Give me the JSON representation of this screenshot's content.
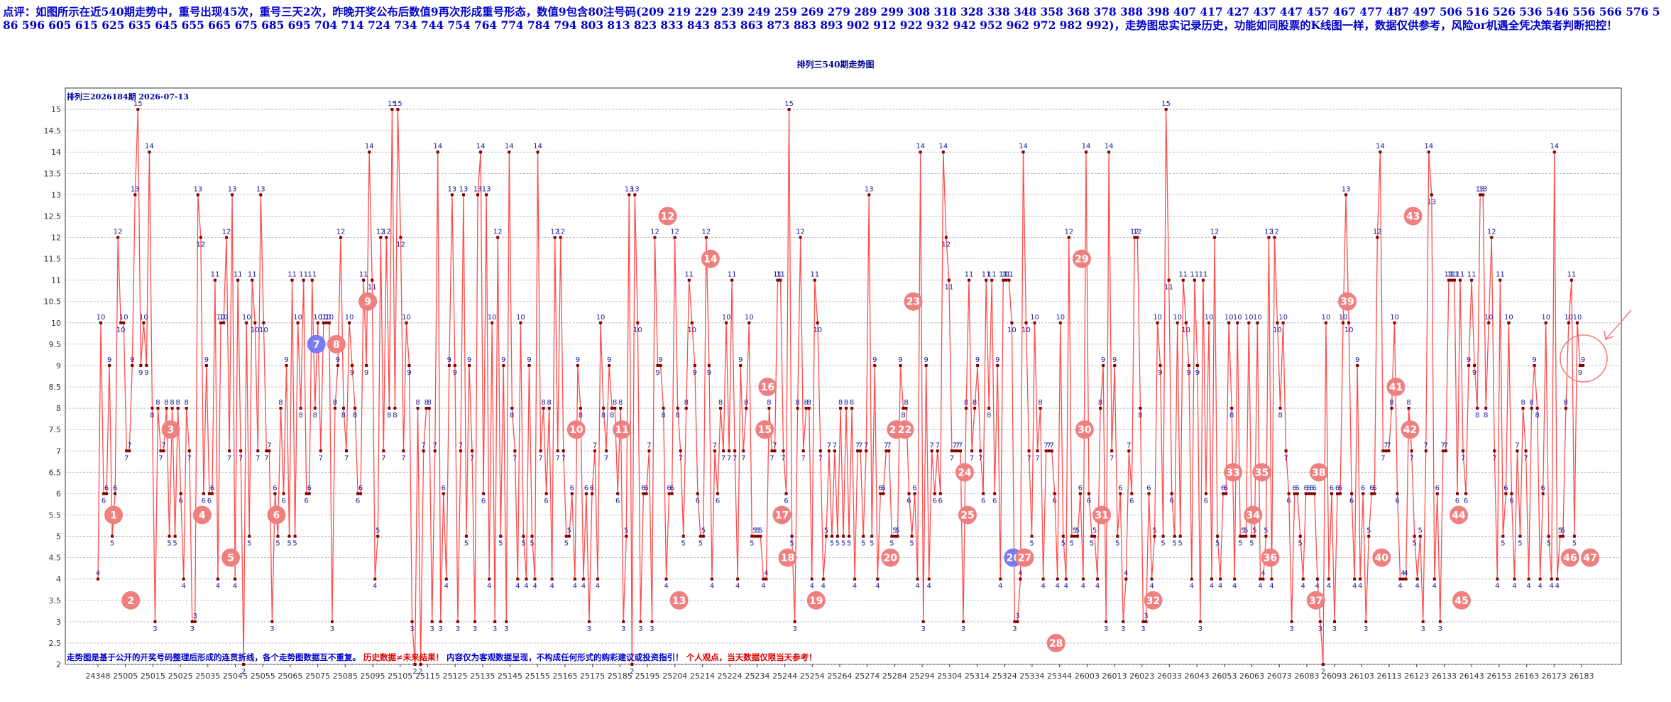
{
  "comment": {
    "text": "点评：如图所示在近540期走势中，重号出现45次，重号三天2次，昨晚开奖公布后数值9再次形成重号形态，数值9包含80注号码(209 219 229 239 249 259 269 279 289 299 308 318 328 338 348 358 368 378 388 398 407 417 427 437 447 457 467 477 487 497 506 516 526 536 546 556 566 576 586 596 605 615 625 635 645 655 665 675 685 695 704 714 724 734 744 754 764 774 784 794 803 813 823 833 843 853 863 873 883 893 902 912 922 932 942 952 962 972 982 992)，走势图忠实记录历史，功能如同股票的K线图一样，数据仅供参考，风险or机遇全凭决策者判断把控！"
  },
  "chart_title": "排列三540期走势图",
  "chart_data": {
    "type": "line",
    "subtitle": "排列三2026184期 2026-07-13",
    "ylim": [
      2,
      15.5
    ],
    "y_ticks": [
      "2",
      "2.5",
      "3",
      "3.5",
      "4",
      "4.5",
      "5",
      "5.5",
      "6",
      "6.5",
      "7",
      "7.5",
      "8",
      "8.5",
      "9",
      "9.5",
      "10",
      "10.5",
      "11",
      "11.5",
      "12",
      "12.5",
      "13",
      "13.5",
      "14",
      "14.5",
      "15"
    ],
    "x_tick_labels": [
      "24348",
      "25005",
      "25015",
      "25025",
      "25035",
      "25045",
      "25055",
      "25065",
      "25075",
      "25085",
      "25095",
      "25105",
      "25115",
      "25125",
      "25135",
      "25145",
      "25155",
      "25165",
      "25175",
      "25185",
      "25195",
      "25204",
      "25214",
      "25224",
      "25234",
      "25244",
      "25254",
      "25264",
      "25274",
      "25284",
      "25294",
      "25304",
      "25314",
      "25324",
      "25334",
      "25344",
      "26003",
      "26013",
      "26023",
      "26033",
      "26043",
      "26053",
      "26063",
      "26073",
      "26083",
      "26093",
      "26103",
      "26113",
      "26123",
      "26133",
      "26143",
      "26153",
      "26163",
      "26173",
      "26183"
    ],
    "values": [
      4,
      10,
      6,
      6,
      9,
      5,
      6,
      12,
      10,
      10,
      7,
      7,
      9,
      13,
      15,
      9,
      10,
      9,
      14,
      8,
      3,
      8,
      7,
      7,
      8,
      5,
      8,
      5,
      8,
      6,
      4,
      8,
      7,
      3,
      3,
      13,
      12,
      6,
      9,
      6,
      6,
      11,
      4,
      10,
      10,
      12,
      7,
      13,
      4,
      11,
      7,
      2,
      10,
      5,
      11,
      10,
      7,
      13,
      10,
      7,
      7,
      3,
      6,
      5,
      8,
      6,
      9,
      5,
      11,
      5,
      10,
      8,
      11,
      6,
      6,
      11,
      8,
      10,
      7,
      10,
      10,
      10,
      3,
      8,
      9,
      12,
      8,
      7,
      10,
      9,
      8,
      6,
      6,
      11,
      9,
      14,
      11,
      4,
      5,
      12,
      7,
      12,
      8,
      15,
      8,
      15,
      12,
      7,
      10,
      9,
      3,
      2,
      8,
      2,
      7,
      8,
      8,
      3,
      7,
      14,
      3,
      6,
      4,
      9,
      13,
      9,
      3,
      7,
      13,
      5,
      9,
      7,
      3,
      13,
      14,
      6,
      13,
      4,
      10,
      3,
      12,
      5,
      9,
      3,
      14,
      8,
      7,
      4,
      10,
      5,
      4,
      9,
      5,
      4,
      14,
      7,
      8,
      6,
      8,
      4,
      12,
      7,
      12,
      7,
      5,
      5,
      6,
      4,
      9,
      8,
      4,
      6,
      3,
      6,
      7,
      4,
      10,
      8,
      7,
      9,
      8,
      8,
      6,
      8,
      3,
      5,
      13,
      2,
      13,
      10,
      3,
      6,
      6,
      7,
      3,
      12,
      9,
      9,
      8,
      4,
      6,
      6,
      12,
      8,
      7,
      5,
      8,
      11,
      10,
      9,
      6,
      5,
      5,
      12,
      9,
      4,
      7,
      6,
      8,
      7,
      10,
      7,
      11,
      7,
      4,
      9,
      7,
      8,
      10,
      5,
      5,
      5,
      5,
      4,
      4,
      8,
      7,
      7,
      11,
      11,
      7,
      6,
      15,
      5,
      3,
      8,
      12,
      7,
      8,
      8,
      4,
      11,
      10,
      7,
      4,
      5,
      7,
      5,
      7,
      5,
      8,
      5,
      8,
      5,
      8,
      4,
      7,
      7,
      5,
      7,
      13,
      5,
      9,
      4,
      6,
      6,
      7,
      7,
      5,
      5,
      5,
      9,
      8,
      8,
      6,
      5,
      6,
      4,
      14,
      3,
      9,
      4,
      7,
      6,
      7,
      6,
      14,
      12,
      11,
      7,
      7,
      7,
      7,
      3,
      8,
      11,
      7,
      8,
      9,
      7,
      6,
      11,
      8,
      11,
      6,
      9,
      4,
      11,
      11,
      11,
      10,
      3,
      3,
      4,
      14,
      10,
      7,
      5,
      10,
      7,
      8,
      4,
      7,
      7,
      7,
      6,
      4,
      10,
      5,
      4,
      12,
      5,
      5,
      5,
      6,
      4,
      14,
      6,
      5,
      5,
      4,
      8,
      9,
      3,
      14,
      7,
      9,
      5,
      6,
      3,
      4,
      7,
      6,
      12,
      12,
      8,
      3,
      3,
      6,
      4,
      5,
      10,
      9,
      5,
      15,
      11,
      6,
      5,
      10,
      5,
      11,
      10,
      9,
      4,
      11,
      9,
      3,
      11,
      6,
      10,
      4,
      12,
      5,
      4,
      6,
      6,
      10,
      8,
      4,
      10,
      5,
      5,
      5,
      10,
      5,
      5,
      10,
      4,
      4,
      5,
      12,
      4,
      12,
      10,
      8,
      10,
      7,
      6,
      3,
      6,
      6,
      5,
      4,
      6,
      6,
      6,
      6,
      4,
      3,
      2,
      10,
      4,
      6,
      3,
      6,
      6,
      10,
      13,
      10,
      6,
      4,
      9,
      4,
      6,
      3,
      5,
      6,
      6,
      12,
      14,
      7,
      7,
      7,
      8,
      10,
      6,
      4,
      4,
      4,
      8,
      7,
      5,
      4,
      5,
      3,
      7,
      14,
      13,
      4,
      6,
      3,
      7,
      7,
      11,
      11,
      11,
      6,
      11,
      7,
      6,
      9,
      11,
      9,
      8,
      13,
      13,
      8,
      10,
      12,
      7,
      4,
      11,
      5,
      6,
      10,
      6,
      4,
      7,
      5,
      8,
      7,
      4,
      8,
      9,
      8,
      4,
      6,
      10,
      5,
      4,
      14,
      4,
      5,
      5,
      8,
      10,
      11,
      5,
      10,
      9,
      9
    ]
  },
  "repeat_markers": {
    "labels": [
      "1",
      "2",
      "3",
      "4",
      "5",
      "6",
      "7",
      "8",
      "9",
      "10",
      "11",
      "12",
      "13",
      "14",
      "15",
      "16",
      "17",
      "18",
      "19",
      "20",
      "21",
      "22",
      "23",
      "24",
      "25",
      "26",
      "27",
      "28",
      "29",
      "30",
      "31",
      "32",
      "33",
      "34",
      "35",
      "36",
      "37",
      "38",
      "39",
      "40",
      "41",
      "42",
      "43",
      "44",
      "45",
      "46",
      "47"
    ],
    "values": [
      5.5,
      3.5,
      7.5,
      5.5,
      4.5,
      5.5,
      9.5,
      9.5,
      10.5,
      7.5,
      7.5,
      12.5,
      3.5,
      11.5,
      7.5,
      8.5,
      5.5,
      4.5,
      3.5,
      4.5,
      7.5,
      7.5,
      10.5,
      6.5,
      5.5,
      4.5,
      4.5,
      2.5,
      11.5,
      7.5,
      5.5,
      3.5,
      6.5,
      5.5,
      6.5,
      4.5,
      3.5,
      6.5,
      10.5,
      4.5,
      8.5,
      7.5,
      12.5,
      5.5,
      3.5,
      4.5,
      4.5
    ],
    "colors": {
      "default": "#f08080",
      "highlight": "#7b7bf0"
    },
    "highlight_labels": [
      "7",
      "26"
    ]
  },
  "footer": {
    "part1": "走势图是基于公开的开奖号码整理后形成的连贯折线，各个走势图数据互不重复。",
    "part2": "历史数据≠未来结果！",
    "part3": "内容仅为客观数据呈现，不构成任何形式的购彩建议或投资指引！",
    "part4": "个人观点，当天数据仅限当天参考！"
  },
  "colors": {
    "line": "#ff4d4d",
    "point": "#800000",
    "value_label": "#1a1aa0",
    "grid": "#b0b0b0",
    "comment": "#0000cc",
    "footer_blue": "#0000cc",
    "footer_red": "#e00000"
  }
}
